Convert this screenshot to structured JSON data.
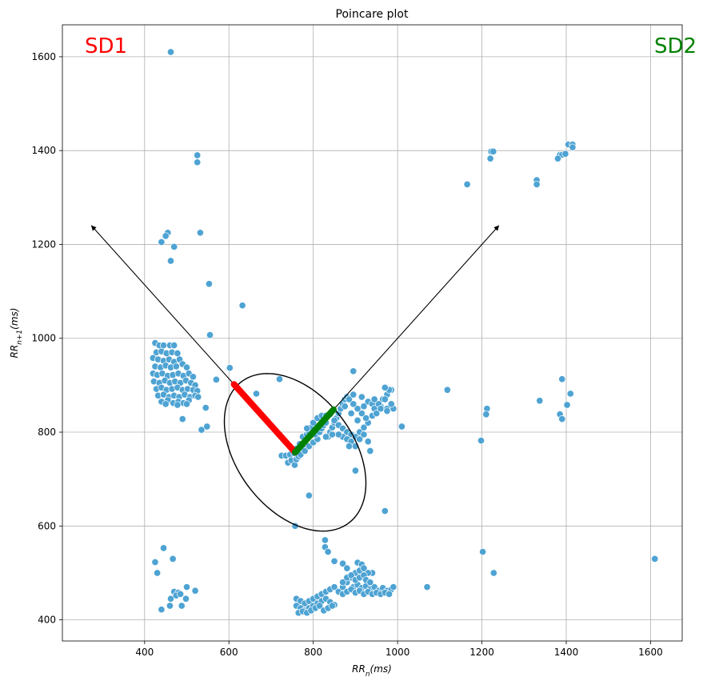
{
  "chart_data": {
    "type": "scatter",
    "title": "Poincare plot",
    "xlabel": "RR_n(ms)",
    "ylabel": "RR_{n+1}(ms)",
    "xlim": [
      205,
      1675
    ],
    "ylim": [
      355,
      1668
    ],
    "xticks": [
      400,
      600,
      800,
      1000,
      1200,
      1400,
      1600
    ],
    "yticks": [
      400,
      600,
      800,
      1000,
      1200,
      1400,
      1600
    ],
    "grid": true,
    "point_color": "#4ea3d3",
    "annotations": [
      {
        "text": "SD1",
        "color": "#ff0000",
        "position": "top-left"
      },
      {
        "text": "SD2",
        "color": "#008000",
        "position": "top-right"
      }
    ],
    "ellipse": {
      "center": [
        757,
        757
      ],
      "sd1": 198,
      "sd2": 131,
      "angle_deg": 45,
      "color": "#000000"
    },
    "sd1_line": {
      "from": [
        757,
        757
      ],
      "to": [
        612,
        902
      ],
      "color": "#ff0000"
    },
    "sd2_line": {
      "from": [
        757,
        757
      ],
      "to": [
        848,
        848
      ],
      "color": "#008000"
    },
    "identity_arrow": {
      "from": [
        757,
        757
      ],
      "to": [
        1240,
        1240
      ],
      "color": "#000000"
    },
    "perpendicular_arrow": {
      "from": [
        757,
        757
      ],
      "to": [
        274,
        1240
      ],
      "color": "#000000"
    },
    "points": [
      [
        462,
        1610
      ],
      [
        525,
        1390
      ],
      [
        525,
        1375
      ],
      [
        1222,
        1398
      ],
      [
        1227,
        1398
      ],
      [
        1220,
        1383
      ],
      [
        1405,
        1413
      ],
      [
        1415,
        1413
      ],
      [
        1415,
        1407
      ],
      [
        1385,
        1391
      ],
      [
        1390,
        1391
      ],
      [
        1398,
        1393
      ],
      [
        1380,
        1383
      ],
      [
        1330,
        1337
      ],
      [
        1330,
        1328
      ],
      [
        1165,
        1328
      ],
      [
        455,
        1225
      ],
      [
        450,
        1218
      ],
      [
        440,
        1205
      ],
      [
        470,
        1195
      ],
      [
        532,
        1225
      ],
      [
        462,
        1165
      ],
      [
        553,
        1116
      ],
      [
        632,
        1070
      ],
      [
        555,
        1007
      ],
      [
        425,
        990
      ],
      [
        435,
        985
      ],
      [
        445,
        985
      ],
      [
        460,
        985
      ],
      [
        470,
        985
      ],
      [
        428,
        970
      ],
      [
        440,
        972
      ],
      [
        452,
        968
      ],
      [
        465,
        970
      ],
      [
        478,
        968
      ],
      [
        420,
        958
      ],
      [
        432,
        955
      ],
      [
        445,
        952
      ],
      [
        458,
        955
      ],
      [
        470,
        950
      ],
      [
        483,
        955
      ],
      [
        425,
        940
      ],
      [
        438,
        938
      ],
      [
        450,
        942
      ],
      [
        462,
        938
      ],
      [
        475,
        940
      ],
      [
        490,
        945
      ],
      [
        500,
        938
      ],
      [
        420,
        925
      ],
      [
        430,
        922
      ],
      [
        442,
        925
      ],
      [
        455,
        920
      ],
      [
        467,
        922
      ],
      [
        480,
        925
      ],
      [
        492,
        920
      ],
      [
        505,
        925
      ],
      [
        515,
        918
      ],
      [
        422,
        908
      ],
      [
        435,
        905
      ],
      [
        448,
        910
      ],
      [
        460,
        905
      ],
      [
        472,
        908
      ],
      [
        485,
        905
      ],
      [
        498,
        910
      ],
      [
        510,
        905
      ],
      [
        520,
        900
      ],
      [
        428,
        892
      ],
      [
        440,
        895
      ],
      [
        452,
        890
      ],
      [
        465,
        892
      ],
      [
        478,
        895
      ],
      [
        490,
        890
      ],
      [
        502,
        892
      ],
      [
        515,
        890
      ],
      [
        525,
        888
      ],
      [
        432,
        878
      ],
      [
        445,
        880
      ],
      [
        458,
        875
      ],
      [
        470,
        878
      ],
      [
        482,
        875
      ],
      [
        495,
        880
      ],
      [
        508,
        875
      ],
      [
        520,
        878
      ],
      [
        527,
        875
      ],
      [
        440,
        865
      ],
      [
        455,
        868
      ],
      [
        468,
        862
      ],
      [
        480,
        865
      ],
      [
        492,
        862
      ],
      [
        505,
        868
      ],
      [
        450,
        860
      ],
      [
        478,
        858
      ],
      [
        500,
        860
      ],
      [
        570,
        912
      ],
      [
        602,
        937
      ],
      [
        665,
        882
      ],
      [
        720,
        913
      ],
      [
        545,
        852
      ],
      [
        490,
        828
      ],
      [
        535,
        805
      ],
      [
        548,
        812
      ],
      [
        725,
        750
      ],
      [
        735,
        750
      ],
      [
        745,
        752
      ],
      [
        755,
        755
      ],
      [
        740,
        735
      ],
      [
        748,
        740
      ],
      [
        756,
        730
      ],
      [
        760,
        742
      ],
      [
        765,
        748
      ],
      [
        770,
        760
      ],
      [
        775,
        768
      ],
      [
        760,
        765
      ],
      [
        768,
        775
      ],
      [
        780,
        780
      ],
      [
        775,
        790
      ],
      [
        785,
        795
      ],
      [
        790,
        800
      ],
      [
        795,
        810
      ],
      [
        785,
        808
      ],
      [
        770,
        752
      ],
      [
        780,
        760
      ],
      [
        790,
        770
      ],
      [
        800,
        778
      ],
      [
        810,
        785
      ],
      [
        805,
        795
      ],
      [
        815,
        800
      ],
      [
        820,
        808
      ],
      [
        825,
        815
      ],
      [
        830,
        820
      ],
      [
        835,
        790
      ],
      [
        840,
        800
      ],
      [
        845,
        810
      ],
      [
        850,
        820
      ],
      [
        855,
        830
      ],
      [
        860,
        840
      ],
      [
        865,
        850
      ],
      [
        870,
        860
      ],
      [
        875,
        870
      ],
      [
        880,
        875
      ],
      [
        800,
        820
      ],
      [
        810,
        830
      ],
      [
        820,
        835
      ],
      [
        830,
        835
      ],
      [
        840,
        838
      ],
      [
        850,
        825
      ],
      [
        860,
        815
      ],
      [
        870,
        808
      ],
      [
        880,
        800
      ],
      [
        890,
        795
      ],
      [
        900,
        790
      ],
      [
        910,
        800
      ],
      [
        920,
        810
      ],
      [
        930,
        820
      ],
      [
        940,
        835
      ],
      [
        950,
        845
      ],
      [
        960,
        855
      ],
      [
        965,
        870
      ],
      [
        975,
        880
      ],
      [
        985,
        890
      ],
      [
        870,
        790
      ],
      [
        880,
        785
      ],
      [
        890,
        780
      ],
      [
        900,
        790
      ],
      [
        910,
        785
      ],
      [
        920,
        795
      ],
      [
        930,
        780
      ],
      [
        885,
        770
      ],
      [
        900,
        770
      ],
      [
        935,
        760
      ],
      [
        925,
        830
      ],
      [
        915,
        840
      ],
      [
        905,
        850
      ],
      [
        895,
        860
      ],
      [
        885,
        870
      ],
      [
        875,
        855
      ],
      [
        895,
        880
      ],
      [
        915,
        875
      ],
      [
        930,
        865
      ],
      [
        940,
        860
      ],
      [
        945,
        850
      ],
      [
        950,
        840
      ],
      [
        955,
        860
      ],
      [
        960,
        850
      ],
      [
        970,
        870
      ],
      [
        975,
        850
      ],
      [
        980,
        890
      ],
      [
        970,
        895
      ],
      [
        895,
        930
      ],
      [
        1010,
        812
      ],
      [
        990,
        850
      ],
      [
        985,
        860
      ],
      [
        975,
        845
      ],
      [
        945,
        870
      ],
      [
        920,
        855
      ],
      [
        905,
        825
      ],
      [
        890,
        840
      ],
      [
        860,
        795
      ],
      [
        845,
        795
      ],
      [
        830,
        790
      ],
      [
        1118,
        890
      ],
      [
        1212,
        850
      ],
      [
        1210,
        838
      ],
      [
        1198,
        782
      ],
      [
        1390,
        913
      ],
      [
        1410,
        882
      ],
      [
        1402,
        858
      ],
      [
        1385,
        838
      ],
      [
        1390,
        828
      ],
      [
        1337,
        867
      ],
      [
        970,
        632
      ],
      [
        900,
        718
      ],
      [
        790,
        665
      ],
      [
        757,
        600
      ],
      [
        445,
        553
      ],
      [
        425,
        523
      ],
      [
        430,
        500
      ],
      [
        467,
        530
      ],
      [
        470,
        460
      ],
      [
        480,
        458
      ],
      [
        500,
        470
      ],
      [
        520,
        462
      ],
      [
        498,
        445
      ],
      [
        488,
        430
      ],
      [
        462,
        445
      ],
      [
        460,
        430
      ],
      [
        440,
        422
      ],
      [
        475,
        452
      ],
      [
        485,
        455
      ],
      [
        828,
        570
      ],
      [
        828,
        555
      ],
      [
        835,
        545
      ],
      [
        850,
        525
      ],
      [
        870,
        520
      ],
      [
        880,
        510
      ],
      [
        905,
        522
      ],
      [
        915,
        518
      ],
      [
        920,
        505
      ],
      [
        940,
        500
      ],
      [
        760,
        445
      ],
      [
        770,
        440
      ],
      [
        780,
        435
      ],
      [
        790,
        440
      ],
      [
        800,
        445
      ],
      [
        810,
        450
      ],
      [
        820,
        455
      ],
      [
        830,
        460
      ],
      [
        840,
        465
      ],
      [
        850,
        470
      ],
      [
        760,
        430
      ],
      [
        770,
        425
      ],
      [
        780,
        420
      ],
      [
        790,
        425
      ],
      [
        800,
        430
      ],
      [
        810,
        435
      ],
      [
        820,
        440
      ],
      [
        830,
        445
      ],
      [
        840,
        438
      ],
      [
        850,
        432
      ],
      [
        765,
        415
      ],
      [
        775,
        418
      ],
      [
        785,
        415
      ],
      [
        795,
        420
      ],
      [
        805,
        425
      ],
      [
        815,
        430
      ],
      [
        825,
        420
      ],
      [
        835,
        425
      ],
      [
        845,
        430
      ],
      [
        860,
        460
      ],
      [
        870,
        470
      ],
      [
        880,
        480
      ],
      [
        890,
        490
      ],
      [
        900,
        500
      ],
      [
        910,
        505
      ],
      [
        920,
        510
      ],
      [
        930,
        500
      ],
      [
        895,
        470
      ],
      [
        905,
        475
      ],
      [
        915,
        468
      ],
      [
        925,
        472
      ],
      [
        935,
        465
      ],
      [
        945,
        470
      ],
      [
        955,
        462
      ],
      [
        965,
        468
      ],
      [
        975,
        462
      ],
      [
        985,
        465
      ],
      [
        990,
        470
      ],
      [
        1070,
        470
      ],
      [
        870,
        455
      ],
      [
        880,
        460
      ],
      [
        890,
        465
      ],
      [
        900,
        458
      ],
      [
        910,
        462
      ],
      [
        920,
        455
      ],
      [
        930,
        460
      ],
      [
        940,
        455
      ],
      [
        950,
        458
      ],
      [
        960,
        455
      ],
      [
        970,
        458
      ],
      [
        980,
        455
      ],
      [
        870,
        480
      ],
      [
        880,
        490
      ],
      [
        890,
        495
      ],
      [
        900,
        485
      ],
      [
        910,
        490
      ],
      [
        920,
        495
      ],
      [
        925,
        485
      ],
      [
        935,
        480
      ],
      [
        1202,
        545
      ],
      [
        1228,
        500
      ],
      [
        1610,
        530
      ]
    ]
  }
}
